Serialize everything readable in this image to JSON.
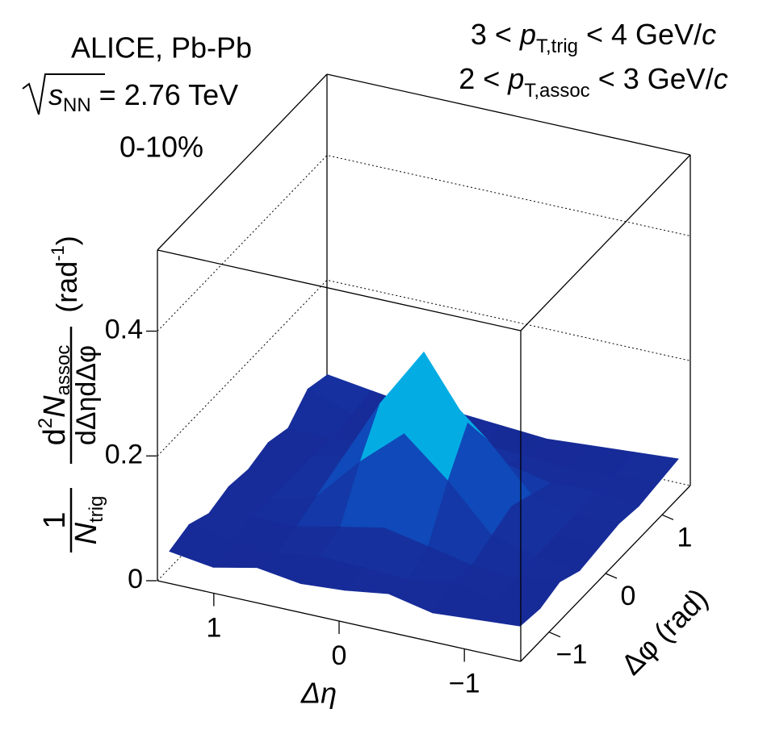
{
  "chart_data": {
    "type": "surface3d",
    "annotations": {
      "experiment": "ALICE, Pb-Pb",
      "energy": [
        "s",
        "NN",
        " = 2.76 TeV"
      ],
      "centrality": "0-10%",
      "trig": [
        "3 < ",
        "p",
        "T,trig",
        " < 4 GeV/",
        "c"
      ],
      "assoc": [
        "2 < ",
        "p",
        "T,assoc",
        " < 3 GeV/",
        "c"
      ]
    },
    "x_label": "Δη",
    "y_label": "Δφ (rad)",
    "z_label": [
      "1",
      "N",
      "trig",
      "d",
      "2",
      "N",
      "assoc",
      "dΔηdΔφ",
      "(rad",
      "-1",
      ")"
    ],
    "x": [
      1.4,
      1.05,
      0.7,
      0.35,
      0,
      -0.35,
      -0.7,
      -1.05,
      -1.4
    ],
    "y": [
      -1.4,
      -1.05,
      -0.7,
      -0.35,
      0,
      0.35,
      0.7,
      1.05,
      1.4
    ],
    "z": [
      [
        0.04,
        0.03,
        0.045,
        0.035,
        0.04,
        0.05,
        0.035,
        0.04,
        0.045
      ],
      [
        0.05,
        0.04,
        0.035,
        0.045,
        0.043,
        0.04,
        0.05,
        0.035,
        0.04
      ],
      [
        0.035,
        0.045,
        0.045,
        0.06,
        0.074,
        0.06,
        0.045,
        0.04,
        0.05
      ],
      [
        0.045,
        0.042,
        0.06,
        0.132,
        0.192,
        0.132,
        0.06,
        0.042,
        0.035
      ],
      [
        0.04,
        0.043,
        0.074,
        0.192,
        0.29,
        0.192,
        0.074,
        0.043,
        0.04
      ],
      [
        0.05,
        0.042,
        0.06,
        0.132,
        0.192,
        0.132,
        0.06,
        0.042,
        0.045
      ],
      [
        0.04,
        0.04,
        0.045,
        0.06,
        0.074,
        0.06,
        0.045,
        0.05,
        0.04
      ],
      [
        0.07,
        0.045,
        0.04,
        0.043,
        0.043,
        0.04,
        0.035,
        0.04,
        0.045
      ],
      [
        0.06,
        0.05,
        0.04,
        0.045,
        0.04,
        0.035,
        0.04,
        0.045,
        0.05
      ]
    ],
    "xlim": [
      1.45,
      -1.45
    ],
    "ylim": [
      -1.5,
      1.5
    ],
    "zlim": [
      0,
      0.53
    ],
    "xticks": [
      1,
      0,
      {
        "value": -1,
        "label": "−1"
      }
    ],
    "yticks": [
      {
        "value": -1,
        "label": "−1"
      },
      0,
      1
    ],
    "zticks": [
      0,
      0.2,
      0.4
    ],
    "grid": true,
    "colormap": [
      "#1b1b86",
      "#1048b8",
      "#00c8f0",
      "#a8e860"
    ]
  }
}
